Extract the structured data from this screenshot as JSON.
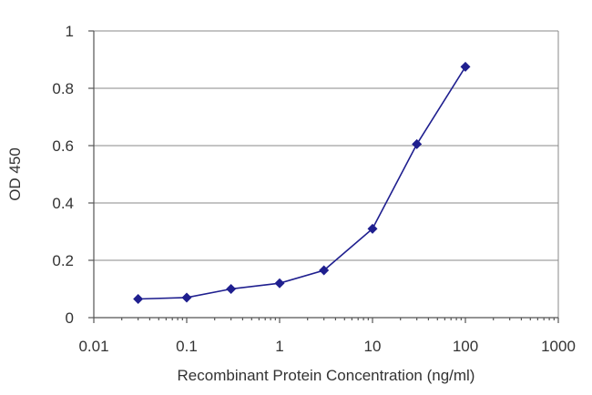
{
  "chart_data": {
    "type": "line",
    "xscale": "log",
    "xlim": [
      0.01,
      1000
    ],
    "ylim": [
      0,
      1
    ],
    "xticks": [
      0.01,
      0.1,
      1,
      10,
      100,
      1000
    ],
    "xtick_labels": [
      "0.01",
      "0.1",
      "1",
      "10",
      "100",
      "1000"
    ],
    "yticks": [
      0,
      0.2,
      0.4,
      0.6,
      0.8,
      1
    ],
    "ytick_labels": [
      "0",
      "0.2",
      "0.4",
      "0.6",
      "0.8",
      "1"
    ],
    "xlabel": "Recombinant Protein Concentration (ng/ml)",
    "ylabel": "OD 450",
    "grid": "horizontal",
    "series": [
      {
        "color": "#1f1f8f",
        "marker": "diamond",
        "x": [
          0.03,
          0.1,
          0.3,
          1,
          3,
          10,
          30,
          100
        ],
        "y": [
          0.065,
          0.07,
          0.1,
          0.12,
          0.165,
          0.31,
          0.605,
          0.875
        ]
      }
    ]
  }
}
